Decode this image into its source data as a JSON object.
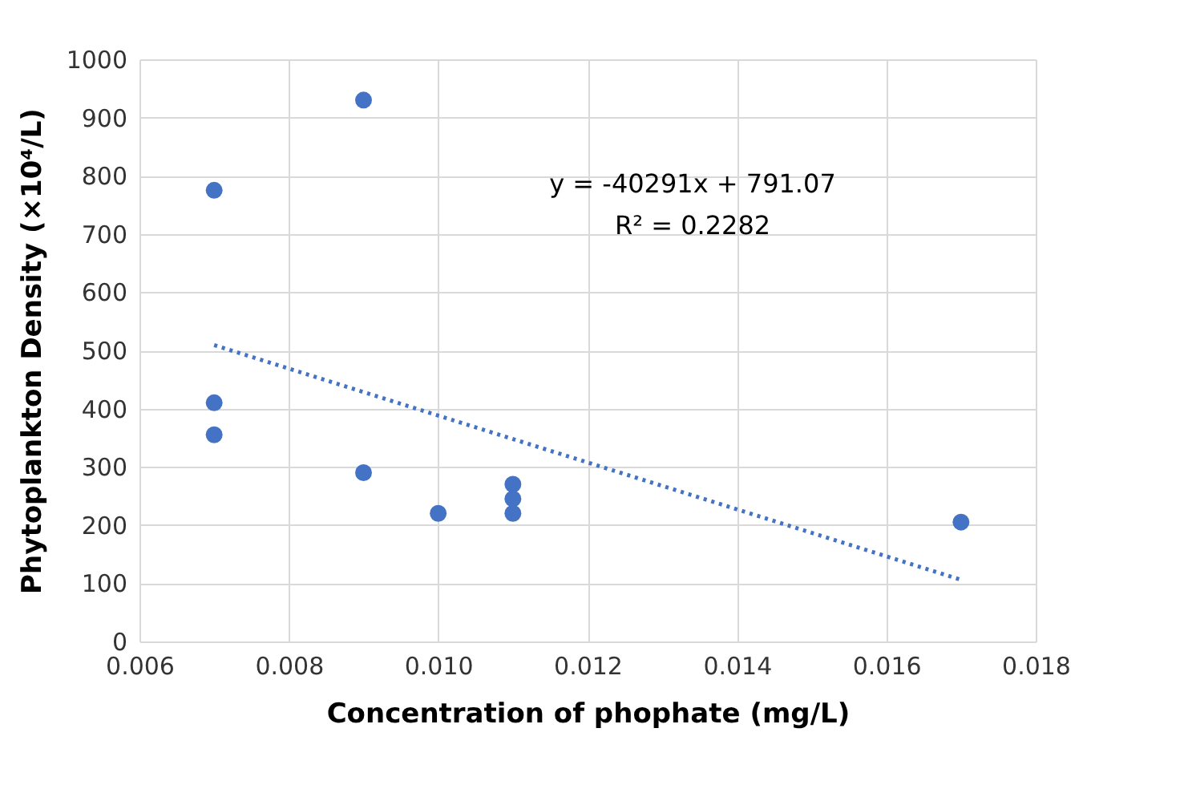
{
  "chart_data": {
    "type": "scatter",
    "xlabel": "Concentration of phophate (mg/L)",
    "ylabel": "Phytoplankton Density (×10⁴/L)",
    "annotations": [
      "y = -40291x + 791.07",
      "R² = 0.2282"
    ],
    "series": [
      {
        "color": "#4472c4",
        "marker": "circle",
        "x": [
          0.007,
          0.007,
          0.007,
          0.009,
          0.009,
          0.01,
          0.011,
          0.011,
          0.011,
          0.017
        ],
        "values": [
          775,
          410,
          355,
          930,
          290,
          220,
          270,
          245,
          220,
          205
        ]
      },
      {
        "type": "line",
        "color": "#4472c4",
        "line_style": "dotted",
        "x": [
          0.007,
          0.017
        ],
        "values": [
          509,
          106
        ]
      }
    ],
    "xlim": [
      0.006,
      0.018
    ],
    "xticks": [
      {
        "value": 0.006,
        "label": "0.006"
      },
      {
        "value": 0.008,
        "label": "0.008"
      },
      {
        "value": 0.01,
        "label": "0.010"
      },
      {
        "value": 0.012,
        "label": "0.012"
      },
      {
        "value": 0.014,
        "label": "0.014"
      },
      {
        "value": 0.016,
        "label": "0.016"
      },
      {
        "value": 0.018,
        "label": "0.018"
      }
    ],
    "ylim": [
      0,
      1000
    ],
    "yticks": [
      0,
      100,
      200,
      300,
      400,
      500,
      600,
      700,
      800,
      900,
      1000
    ],
    "grid": true
  }
}
